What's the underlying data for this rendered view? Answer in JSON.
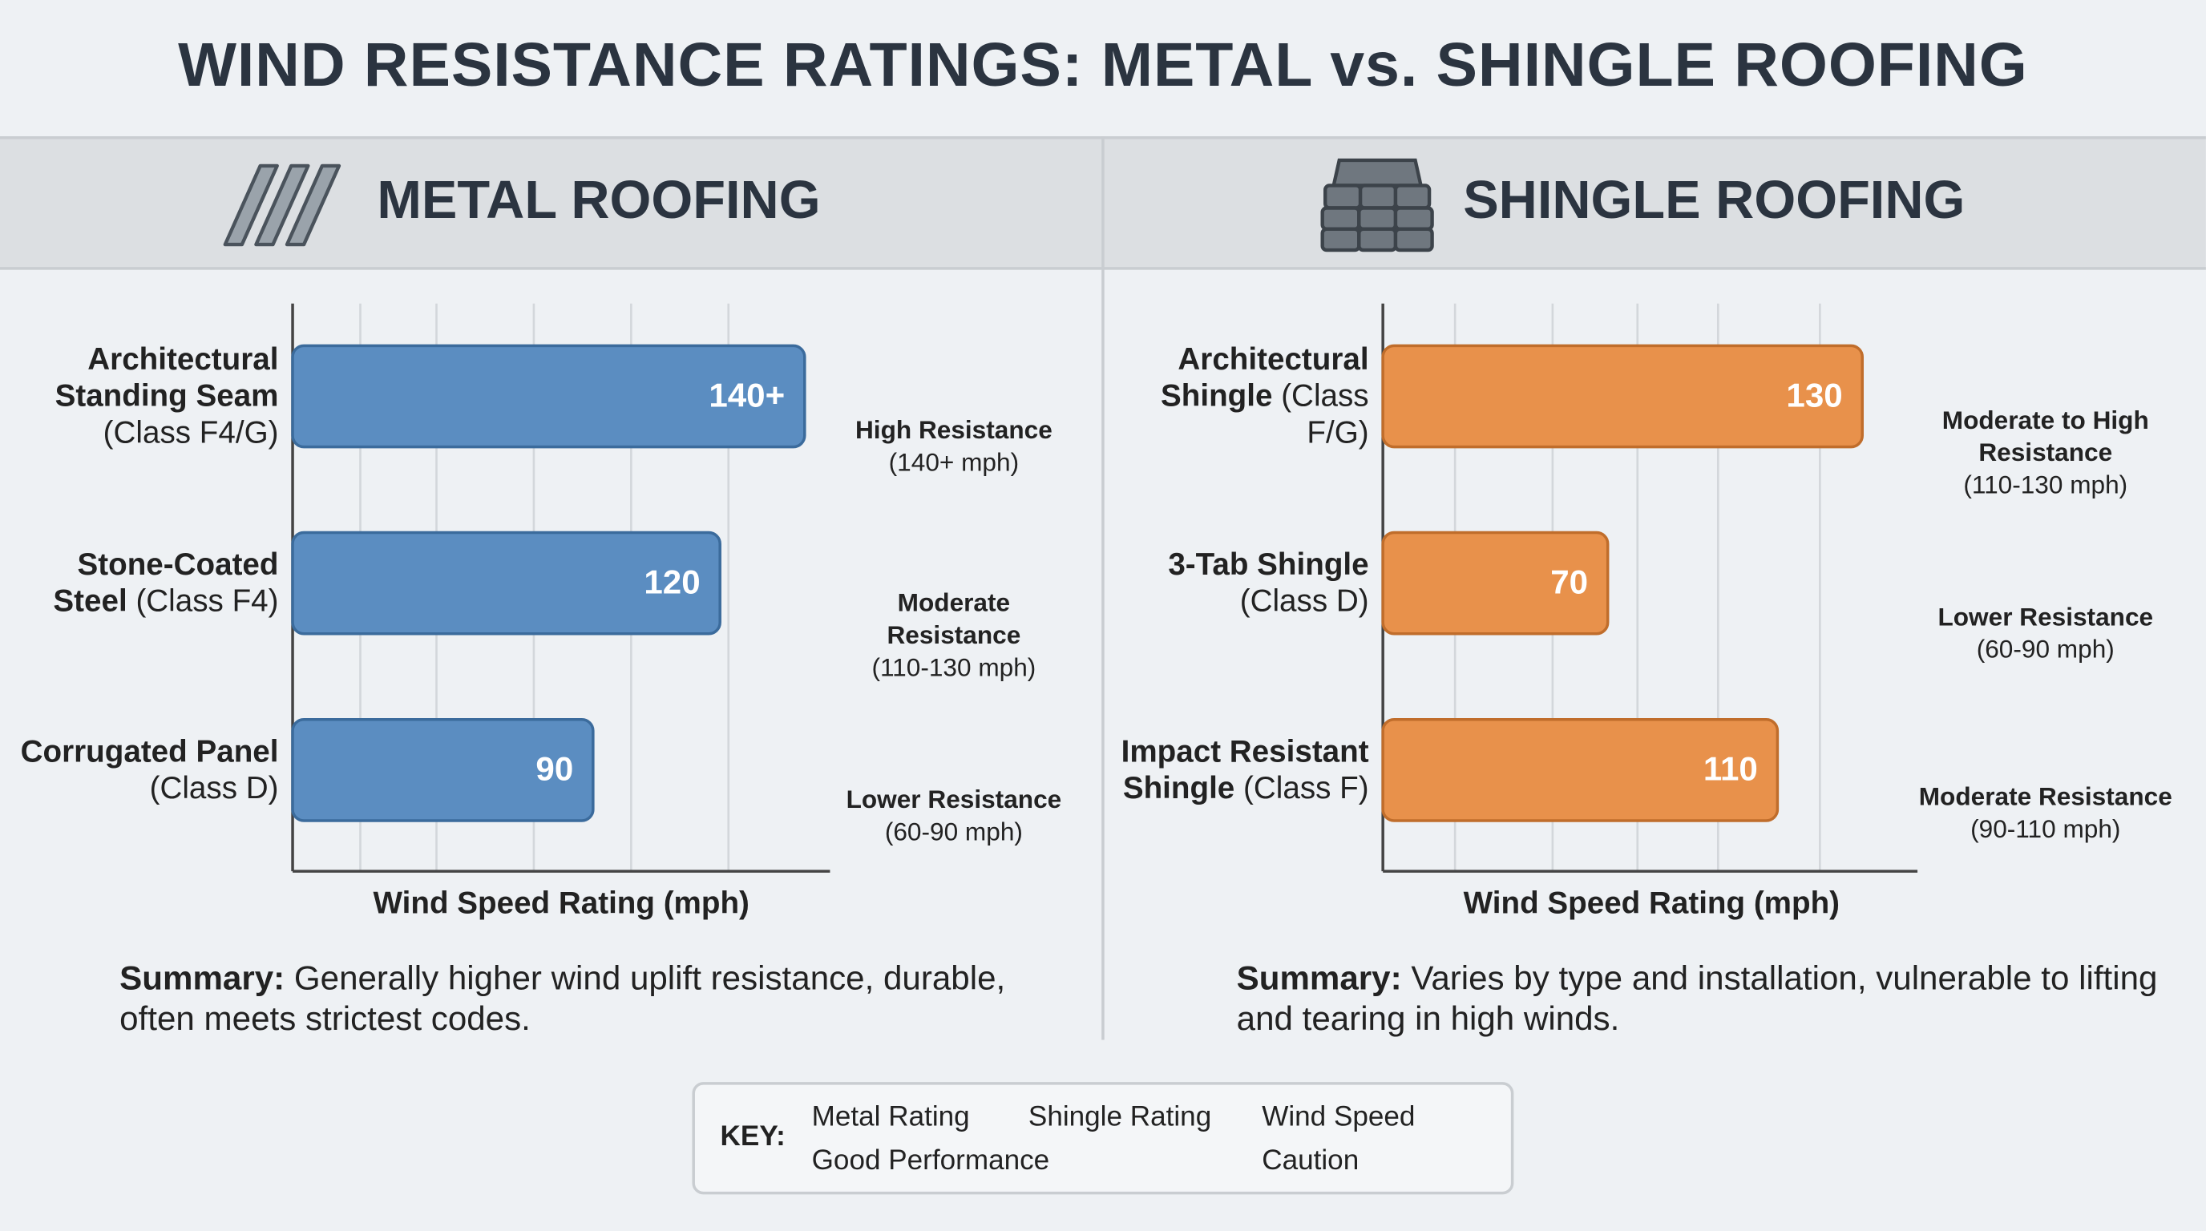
{
  "title": "WIND RESISTANCE RATINGS: METAL vs. SHINGLE ROOFING",
  "chart_data": [
    {
      "type": "bar",
      "orientation": "horizontal",
      "title": "METAL ROOFING",
      "categories": [
        "Architectural Standing Seam",
        "Stone-Coated Steel",
        "Corrugated Panel"
      ],
      "category_classes": [
        "(Class F4/G)",
        "(Class F4)",
        "(Class D)"
      ],
      "values": [
        140,
        120,
        90
      ],
      "value_labels": [
        "140+",
        "120",
        "90"
      ],
      "color": "#5b8dc1",
      "border_color": "#3b6b9c",
      "xlim": [
        19,
        146
      ],
      "xgrid": [
        35,
        53,
        76,
        99,
        122
      ],
      "xlabel": "Wind Speed Rating (mph)",
      "ratings": [
        {
          "label": "High Resistance",
          "range": "(140+ mph)",
          "status": "good"
        },
        {
          "label": "Moderate Resistance",
          "range": "(110-130 mph)",
          "status": "good"
        },
        {
          "label": "Lower Resistance",
          "range": "(60-90 mph)",
          "status": "caution"
        }
      ],
      "summary": {
        "lead": "Summary:",
        "text": "Generally higher wind uplift resistance, durable, often meets strictest codes."
      }
    },
    {
      "type": "bar",
      "orientation": "horizontal",
      "title": "SHINGLE ROOFING",
      "categories": [
        "Architectural Shingle",
        "3-Tab Shingle",
        "Impact Resistant Shingle"
      ],
      "category_classes": [
        "(Class F/G)",
        "(Class D)",
        "(Class F)"
      ],
      "values": [
        130,
        70,
        110
      ],
      "value_labels": [
        "130",
        "70",
        "110"
      ],
      "color": "#e8914b",
      "border_color": "#c06d2b",
      "xlim": [
        17,
        143
      ],
      "xgrid": [
        34,
        57,
        77,
        96,
        120
      ],
      "xlabel": "Wind Speed Rating (mph)",
      "ratings": [
        {
          "label": "Moderate to High Resistance",
          "range": "(110-130 mph)",
          "status": "good"
        },
        {
          "label": "Lower Resistance",
          "range": "(60-90 mph)",
          "status": "caution"
        },
        {
          "label": "Moderate Resistance",
          "range": "(90-110 mph)",
          "status": "good"
        }
      ],
      "summary": {
        "lead": "Summary:",
        "text": "Varies by type and installation, vulnerable to lifting and tearing in high winds."
      }
    }
  ],
  "key": {
    "label": "KEY:",
    "items": [
      "Metal Rating",
      "Shingle Rating",
      "Wind Speed",
      "Good Performance",
      "Caution"
    ]
  }
}
